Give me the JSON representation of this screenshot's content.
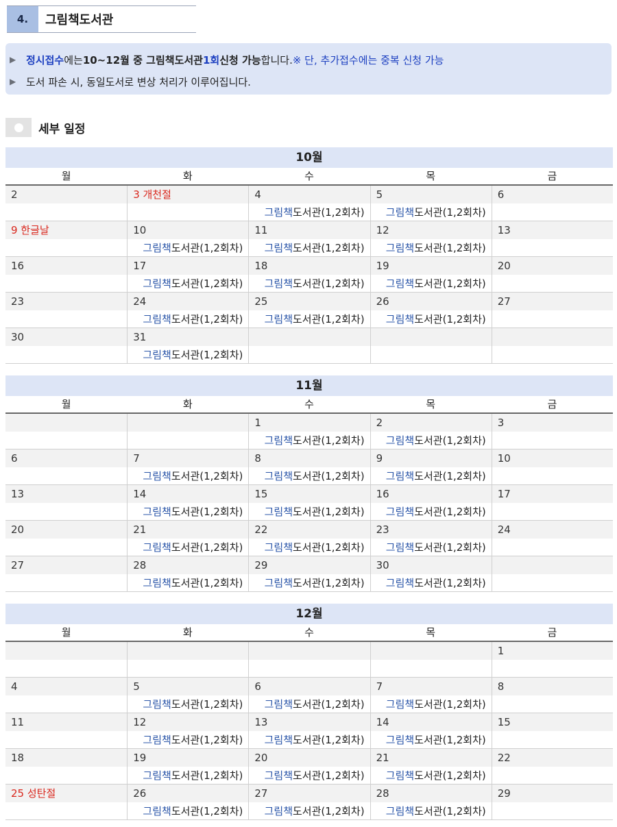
{
  "section": {
    "number": "4.",
    "title": "그림책도서관"
  },
  "notice": {
    "line1": {
      "part1": "정시접수",
      "part2": "에는 ",
      "part3": "10~12월 중 그림책도서관 ",
      "part4": "1회",
      "part5": " 신청 가능",
      "part6": "합니다. ",
      "part7": "※ 단, 추가접수에는 중복 신청 가능"
    },
    "line2": "도서 파손 시, 동일도서로 변상 처리가 이루어집니다."
  },
  "schedule_title": "세부 일정",
  "weekdays": [
    "월",
    "화",
    "수",
    "목",
    "금"
  ],
  "event": {
    "part1": "그림책",
    "part2": "도서관(1,2회차)"
  },
  "colors": {
    "accent_blue": "#1c3fc0",
    "event_blue": "#2a55a8",
    "holiday_red": "#d9261c",
    "band": "#dde5f6"
  },
  "months": [
    {
      "name": "10월",
      "weeks": [
        [
          {
            "d": "2",
            "h": false,
            "e": false
          },
          {
            "d": "3  개천절",
            "h": true,
            "e": false
          },
          {
            "d": "4",
            "h": false,
            "e": true
          },
          {
            "d": "5",
            "h": false,
            "e": true
          },
          {
            "d": "6",
            "h": false,
            "e": false
          }
        ],
        [
          {
            "d": "9  한글날",
            "h": true,
            "e": false
          },
          {
            "d": "10",
            "h": false,
            "e": true
          },
          {
            "d": "11",
            "h": false,
            "e": true
          },
          {
            "d": "12",
            "h": false,
            "e": true
          },
          {
            "d": "13",
            "h": false,
            "e": false
          }
        ],
        [
          {
            "d": "16",
            "h": false,
            "e": false
          },
          {
            "d": "17",
            "h": false,
            "e": true
          },
          {
            "d": "18",
            "h": false,
            "e": true
          },
          {
            "d": "19",
            "h": false,
            "e": true
          },
          {
            "d": "20",
            "h": false,
            "e": false
          }
        ],
        [
          {
            "d": "23",
            "h": false,
            "e": false
          },
          {
            "d": "24",
            "h": false,
            "e": true
          },
          {
            "d": "25",
            "h": false,
            "e": true
          },
          {
            "d": "26",
            "h": false,
            "e": true
          },
          {
            "d": "27",
            "h": false,
            "e": false
          }
        ],
        [
          {
            "d": "30",
            "h": false,
            "e": false
          },
          {
            "d": "31",
            "h": false,
            "e": true
          },
          {
            "d": "",
            "h": false,
            "e": false
          },
          {
            "d": "",
            "h": false,
            "e": false
          },
          {
            "d": "",
            "h": false,
            "e": false
          }
        ]
      ]
    },
    {
      "name": "11월",
      "weeks": [
        [
          {
            "d": "",
            "h": false,
            "e": false
          },
          {
            "d": "",
            "h": false,
            "e": false
          },
          {
            "d": "1",
            "h": false,
            "e": true
          },
          {
            "d": "2",
            "h": false,
            "e": true
          },
          {
            "d": "3",
            "h": false,
            "e": false
          }
        ],
        [
          {
            "d": "6",
            "h": false,
            "e": false
          },
          {
            "d": "7",
            "h": false,
            "e": true
          },
          {
            "d": "8",
            "h": false,
            "e": true
          },
          {
            "d": "9",
            "h": false,
            "e": true
          },
          {
            "d": "10",
            "h": false,
            "e": false
          }
        ],
        [
          {
            "d": "13",
            "h": false,
            "e": false
          },
          {
            "d": "14",
            "h": false,
            "e": true
          },
          {
            "d": "15",
            "h": false,
            "e": true
          },
          {
            "d": "16",
            "h": false,
            "e": true
          },
          {
            "d": "17",
            "h": false,
            "e": false
          }
        ],
        [
          {
            "d": "20",
            "h": false,
            "e": false
          },
          {
            "d": "21",
            "h": false,
            "e": true
          },
          {
            "d": "22",
            "h": false,
            "e": true
          },
          {
            "d": "23",
            "h": false,
            "e": true
          },
          {
            "d": "24",
            "h": false,
            "e": false
          }
        ],
        [
          {
            "d": "27",
            "h": false,
            "e": false
          },
          {
            "d": "28",
            "h": false,
            "e": true
          },
          {
            "d": "29",
            "h": false,
            "e": true
          },
          {
            "d": "30",
            "h": false,
            "e": true
          },
          {
            "d": "",
            "h": false,
            "e": false
          }
        ]
      ]
    },
    {
      "name": "12월",
      "weeks": [
        [
          {
            "d": "",
            "h": false,
            "e": false
          },
          {
            "d": "",
            "h": false,
            "e": false
          },
          {
            "d": "",
            "h": false,
            "e": false
          },
          {
            "d": "",
            "h": false,
            "e": false
          },
          {
            "d": "1",
            "h": false,
            "e": false
          }
        ],
        [
          {
            "d": "4",
            "h": false,
            "e": false
          },
          {
            "d": "5",
            "h": false,
            "e": true
          },
          {
            "d": "6",
            "h": false,
            "e": true
          },
          {
            "d": "7",
            "h": false,
            "e": true
          },
          {
            "d": "8",
            "h": false,
            "e": false
          }
        ],
        [
          {
            "d": "11",
            "h": false,
            "e": false
          },
          {
            "d": "12",
            "h": false,
            "e": true
          },
          {
            "d": "13",
            "h": false,
            "e": true
          },
          {
            "d": "14",
            "h": false,
            "e": true
          },
          {
            "d": "15",
            "h": false,
            "e": false
          }
        ],
        [
          {
            "d": "18",
            "h": false,
            "e": false
          },
          {
            "d": "19",
            "h": false,
            "e": true
          },
          {
            "d": "20",
            "h": false,
            "e": true
          },
          {
            "d": "21",
            "h": false,
            "e": true
          },
          {
            "d": "22",
            "h": false,
            "e": false
          }
        ],
        [
          {
            "d": "25  성탄절",
            "h": true,
            "e": false
          },
          {
            "d": "26",
            "h": false,
            "e": true
          },
          {
            "d": "27",
            "h": false,
            "e": true
          },
          {
            "d": "28",
            "h": false,
            "e": true
          },
          {
            "d": "29",
            "h": false,
            "e": false
          }
        ]
      ]
    }
  ]
}
